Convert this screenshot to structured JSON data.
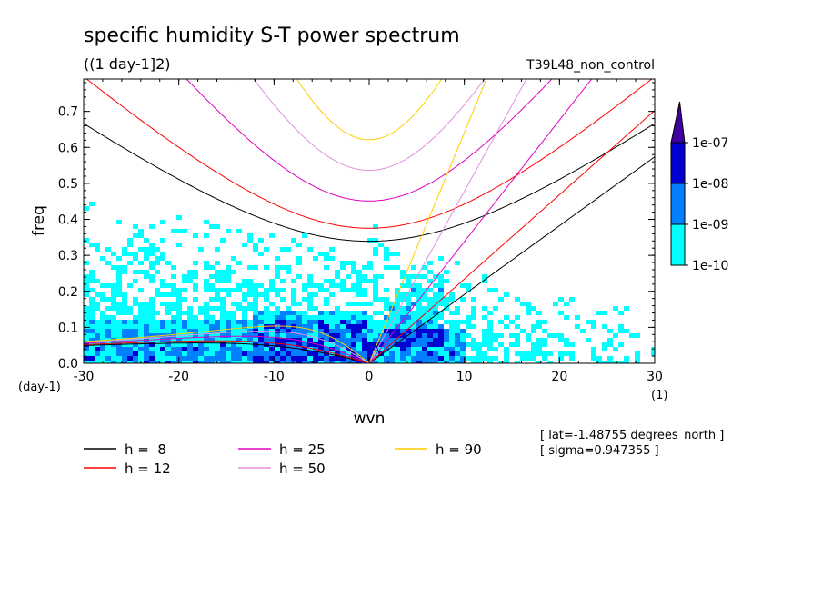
{
  "chart_data": {
    "type": "heatmap",
    "title": "specific humidity S-T power spectrum",
    "subtitle": "((1 day-1]2)",
    "experiment": "T39L48_non_control",
    "xlabel": "wvn",
    "ylabel": "freq",
    "x_unit": "(1)",
    "y_unit": "(day-1)",
    "xlim": [
      -30,
      30
    ],
    "ylim": [
      0,
      0.79
    ],
    "x_ticks": [
      "-30",
      "-20",
      "-10",
      "0",
      "10",
      "20",
      "30"
    ],
    "y_ticks": [
      "0.0",
      "0.1",
      "0.2",
      "0.3",
      "0.4",
      "0.5",
      "0.6",
      "0.7"
    ],
    "colorbar": {
      "labels": [
        "1e-10",
        "1e-09",
        "1e-08",
        "1e-07"
      ],
      "colors": [
        "#00ffff",
        "#0080ff",
        "#0000d0",
        "#4000a0"
      ]
    },
    "info": [
      "[ lat=-1.48755 degrees_north ]",
      "[ sigma=0.947355 ]"
    ],
    "series": [
      {
        "name": "h =  8",
        "h": 8,
        "color": "#000000"
      },
      {
        "name": "h = 12",
        "h": 12,
        "color": "#ff0000"
      },
      {
        "name": "h = 25",
        "h": 25,
        "color": "#e000c0"
      },
      {
        "name": "h = 50",
        "h": 50,
        "color": "#e090e0"
      },
      {
        "name": "h = 90",
        "h": 90,
        "color": "#ffcc00"
      }
    ]
  }
}
